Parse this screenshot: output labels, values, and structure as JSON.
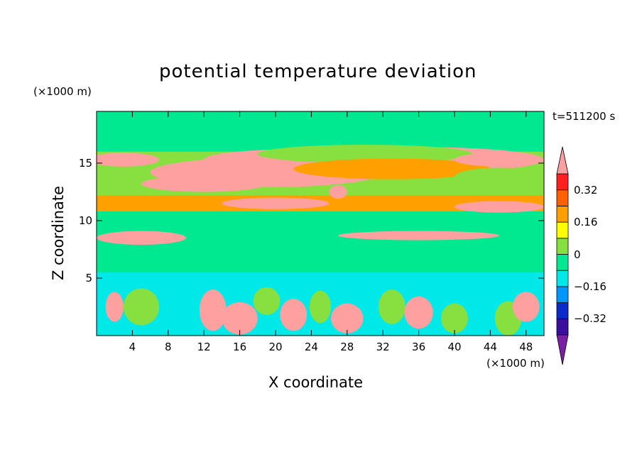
{
  "chart_data": {
    "type": "heatmap",
    "title": "potential temperature deviation",
    "time_label": "t=511200 s",
    "xlabel": "X coordinate",
    "ylabel": "Z coordinate",
    "x_unit": "(×1000 m)",
    "y_unit": "(×1000 m)",
    "xlim": [
      0,
      50
    ],
    "ylim": [
      0,
      19.5
    ],
    "x_ticks": [
      4,
      8,
      12,
      16,
      20,
      24,
      28,
      32,
      36,
      40,
      44,
      48
    ],
    "x_tick_labels": [
      "4",
      "8",
      "12",
      "16",
      "20",
      "24",
      "28",
      "32",
      "36",
      "40",
      "44",
      "48"
    ],
    "y_ticks": [
      5,
      10,
      15
    ],
    "y_tick_labels": [
      "5",
      "10",
      "15"
    ],
    "colorbar": {
      "levels": [
        -0.4,
        -0.32,
        -0.24,
        -0.16,
        -0.08,
        0,
        0.08,
        0.16,
        0.24,
        0.32,
        0.4
      ],
      "labels": [
        {
          "value": 0.32,
          "text": "0.32"
        },
        {
          "value": 0.16,
          "text": "0.16"
        },
        {
          "value": 0,
          "text": "0"
        },
        {
          "value": -0.16,
          "text": "−0.16"
        },
        {
          "value": -0.32,
          "text": "−0.32"
        }
      ],
      "colors": [
        "#7a1fa8",
        "#3a0fa0",
        "#0a2acc",
        "#0096ff",
        "#00e8e8",
        "#00e890",
        "#88e040",
        "#ffff00",
        "#ffa000",
        "#ff6000",
        "#ff2020",
        "#ffa0a0"
      ],
      "extend": "both"
    },
    "features": [
      {
        "type": "band",
        "x0": 0,
        "x1": 50,
        "y0": 5.5,
        "y1": 19.5,
        "level": 0
      },
      {
        "type": "band",
        "x0": 0,
        "x1": 50,
        "y0": 12.0,
        "y1": 16.0,
        "level": 1
      },
      {
        "type": "band",
        "x0": 0,
        "x1": 50,
        "y0": 10.8,
        "y1": 12.2,
        "level": 3
      },
      {
        "type": "blob",
        "cx": 19,
        "cy": 14.2,
        "rx": 13,
        "ry": 1.3,
        "level": 10
      },
      {
        "type": "blob",
        "cx": 22,
        "cy": 15.3,
        "rx": 10,
        "ry": 0.9,
        "level": 11
      },
      {
        "type": "blob",
        "cx": 36,
        "cy": 15.3,
        "rx": 14,
        "ry": 1.1,
        "level": 8
      },
      {
        "type": "blob",
        "cx": 30,
        "cy": 15.8,
        "rx": 12,
        "ry": 0.8,
        "level": 1
      },
      {
        "type": "blob",
        "cx": 33,
        "cy": 14.5,
        "rx": 11,
        "ry": 0.9,
        "level": 3
      },
      {
        "type": "blob",
        "cx": 12,
        "cy": 13.2,
        "rx": 7,
        "ry": 0.7,
        "level": 10
      },
      {
        "type": "blob",
        "cx": 3,
        "cy": 15.3,
        "rx": 4,
        "ry": 0.6,
        "level": 10
      },
      {
        "type": "blob",
        "cx": 45,
        "cy": 15.3,
        "rx": 5,
        "ry": 0.6,
        "level": 10
      },
      {
        "type": "blob",
        "cx": 45,
        "cy": 13.8,
        "rx": 5,
        "ry": 0.8,
        "level": 1
      },
      {
        "type": "blob",
        "cx": 45,
        "cy": 11.2,
        "rx": 5,
        "ry": 0.5,
        "level": 9
      },
      {
        "type": "blob",
        "cx": 20,
        "cy": 11.5,
        "rx": 6,
        "ry": 0.5,
        "level": 9
      },
      {
        "type": "blob",
        "cx": 5,
        "cy": 8.5,
        "rx": 5,
        "ry": 0.6,
        "level": 11
      },
      {
        "type": "blob",
        "cx": 36,
        "cy": 8.7,
        "rx": 9,
        "ry": 0.4,
        "level": 9
      },
      {
        "type": "blob",
        "cx": 27,
        "cy": 12.5,
        "rx": 1,
        "ry": 0.6,
        "level": 11
      },
      {
        "type": "band",
        "x0": 0,
        "x1": 50,
        "y0": 0,
        "y1": 5.5,
        "level": -1
      },
      {
        "type": "blob",
        "cx": 5,
        "cy": 2.5,
        "rx": 2,
        "ry": 1.6,
        "level": 1
      },
      {
        "type": "blob",
        "cx": 13,
        "cy": 2.2,
        "rx": 1.5,
        "ry": 1.8,
        "level": 8
      },
      {
        "type": "blob",
        "cx": 16,
        "cy": 1.5,
        "rx": 2,
        "ry": 1.4,
        "level": 10
      },
      {
        "type": "blob",
        "cx": 19,
        "cy": 3.0,
        "rx": 1.5,
        "ry": 1.2,
        "level": 1
      },
      {
        "type": "blob",
        "cx": 22,
        "cy": 1.8,
        "rx": 1.5,
        "ry": 1.4,
        "level": 8
      },
      {
        "type": "blob",
        "cx": 25,
        "cy": 2.5,
        "rx": 1.2,
        "ry": 1.4,
        "level": 1
      },
      {
        "type": "blob",
        "cx": 28,
        "cy": 1.5,
        "rx": 1.8,
        "ry": 1.3,
        "level": 10
      },
      {
        "type": "blob",
        "cx": 33,
        "cy": 2.5,
        "rx": 1.5,
        "ry": 1.5,
        "level": 1
      },
      {
        "type": "blob",
        "cx": 36,
        "cy": 2.0,
        "rx": 1.6,
        "ry": 1.4,
        "level": 9
      },
      {
        "type": "blob",
        "cx": 40,
        "cy": 1.5,
        "rx": 1.5,
        "ry": 1.3,
        "level": 1
      },
      {
        "type": "blob",
        "cx": 46,
        "cy": 1.5,
        "rx": 1.5,
        "ry": 1.5,
        "level": 1
      },
      {
        "type": "blob",
        "cx": 48,
        "cy": 2.5,
        "rx": 1.5,
        "ry": 1.3,
        "level": 10
      },
      {
        "type": "blob",
        "cx": 2,
        "cy": 2.5,
        "rx": 1,
        "ry": 1.3,
        "level": 10
      }
    ]
  }
}
